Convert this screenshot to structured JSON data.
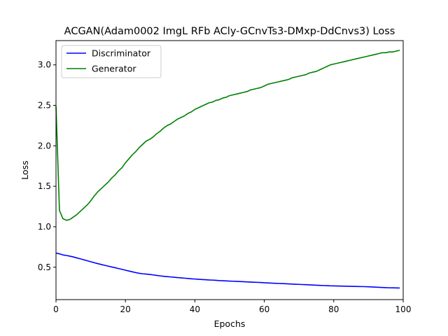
{
  "chart_data": {
    "type": "line",
    "title": "ACGAN(Adam0002 ImgL RFb ACly-GCnvTs3-DMxp-DdCnvs3) Loss",
    "xlabel": "Epochs",
    "ylabel": "Loss",
    "xlim": [
      0,
      100
    ],
    "ylim": [
      0.1,
      3.3
    ],
    "xticks": [
      0,
      20,
      40,
      60,
      80,
      100
    ],
    "yticks": [
      0.5,
      1.0,
      1.5,
      2.0,
      2.5,
      3.0
    ],
    "xtick_labels": [
      "0",
      "20",
      "40",
      "60",
      "80",
      "100"
    ],
    "ytick_labels": [
      "0.5",
      "1.0",
      "1.5",
      "2.0",
      "2.5",
      "3.0"
    ],
    "grid": false,
    "legend_position": "top-left",
    "series": [
      {
        "name": "Discriminator",
        "color": "#0000ff",
        "x": [
          0,
          1,
          2,
          3,
          4,
          5,
          6,
          7,
          8,
          9,
          10,
          11,
          12,
          13,
          14,
          15,
          16,
          17,
          18,
          19,
          20,
          21,
          22,
          23,
          24,
          25,
          26,
          27,
          28,
          29,
          30,
          31,
          32,
          33,
          34,
          35,
          36,
          37,
          38,
          39,
          40,
          41,
          42,
          43,
          44,
          45,
          46,
          47,
          48,
          49,
          50,
          51,
          52,
          53,
          54,
          55,
          56,
          57,
          58,
          59,
          60,
          61,
          62,
          63,
          64,
          65,
          66,
          67,
          68,
          69,
          70,
          71,
          72,
          73,
          74,
          75,
          76,
          77,
          78,
          79,
          80,
          81,
          82,
          83,
          84,
          85,
          86,
          87,
          88,
          89,
          90,
          91,
          92,
          93,
          94,
          95,
          96,
          97,
          98,
          99
        ],
        "values": [
          0.675,
          0.665,
          0.652,
          0.645,
          0.637,
          0.627,
          0.615,
          0.604,
          0.592,
          0.58,
          0.568,
          0.556,
          0.545,
          0.534,
          0.524,
          0.514,
          0.504,
          0.494,
          0.484,
          0.474,
          0.463,
          0.453,
          0.443,
          0.433,
          0.425,
          0.419,
          0.415,
          0.411,
          0.405,
          0.399,
          0.393,
          0.388,
          0.384,
          0.38,
          0.376,
          0.372,
          0.369,
          0.365,
          0.361,
          0.357,
          0.354,
          0.351,
          0.348,
          0.346,
          0.343,
          0.341,
          0.338,
          0.335,
          0.333,
          0.331,
          0.329,
          0.327,
          0.325,
          0.323,
          0.321,
          0.319,
          0.317,
          0.315,
          0.313,
          0.311,
          0.308,
          0.306,
          0.304,
          0.302,
          0.3,
          0.298,
          0.296,
          0.294,
          0.292,
          0.29,
          0.288,
          0.286,
          0.284,
          0.282,
          0.28,
          0.278,
          0.276,
          0.274,
          0.272,
          0.27,
          0.269,
          0.268,
          0.267,
          0.266,
          0.265,
          0.264,
          0.263,
          0.262,
          0.261,
          0.26,
          0.258,
          0.256,
          0.254,
          0.252,
          0.25,
          0.248,
          0.246,
          0.245,
          0.244,
          0.243
        ]
      },
      {
        "name": "Generator",
        "color": "#008000",
        "x": [
          0,
          1,
          2,
          3,
          4,
          5,
          6,
          7,
          8,
          9,
          10,
          11,
          12,
          13,
          14,
          15,
          16,
          17,
          18,
          19,
          20,
          21,
          22,
          23,
          24,
          25,
          26,
          27,
          28,
          29,
          30,
          31,
          32,
          33,
          34,
          35,
          36,
          37,
          38,
          39,
          40,
          41,
          42,
          43,
          44,
          45,
          46,
          47,
          48,
          49,
          50,
          51,
          52,
          53,
          54,
          55,
          56,
          57,
          58,
          59,
          60,
          61,
          62,
          63,
          64,
          65,
          66,
          67,
          68,
          69,
          70,
          71,
          72,
          73,
          74,
          75,
          76,
          77,
          78,
          79,
          80,
          81,
          82,
          83,
          84,
          85,
          86,
          87,
          88,
          89,
          90,
          91,
          92,
          93,
          94,
          95,
          96,
          97,
          98,
          99
        ],
        "values": [
          2.49,
          1.2,
          1.1,
          1.08,
          1.09,
          1.12,
          1.15,
          1.19,
          1.23,
          1.27,
          1.32,
          1.38,
          1.43,
          1.47,
          1.51,
          1.55,
          1.6,
          1.64,
          1.69,
          1.73,
          1.79,
          1.84,
          1.89,
          1.93,
          1.98,
          2.02,
          2.06,
          2.08,
          2.11,
          2.15,
          2.18,
          2.22,
          2.25,
          2.27,
          2.3,
          2.33,
          2.35,
          2.37,
          2.4,
          2.42,
          2.45,
          2.47,
          2.49,
          2.51,
          2.53,
          2.54,
          2.56,
          2.57,
          2.59,
          2.6,
          2.62,
          2.63,
          2.64,
          2.65,
          2.66,
          2.67,
          2.69,
          2.7,
          2.71,
          2.72,
          2.74,
          2.76,
          2.77,
          2.78,
          2.79,
          2.8,
          2.81,
          2.82,
          2.84,
          2.85,
          2.86,
          2.87,
          2.88,
          2.9,
          2.91,
          2.92,
          2.94,
          2.96,
          2.98,
          3.0,
          3.01,
          3.02,
          3.03,
          3.04,
          3.05,
          3.06,
          3.07,
          3.08,
          3.09,
          3.1,
          3.11,
          3.12,
          3.13,
          3.14,
          3.15,
          3.15,
          3.16,
          3.16,
          3.17,
          3.18
        ]
      }
    ]
  }
}
